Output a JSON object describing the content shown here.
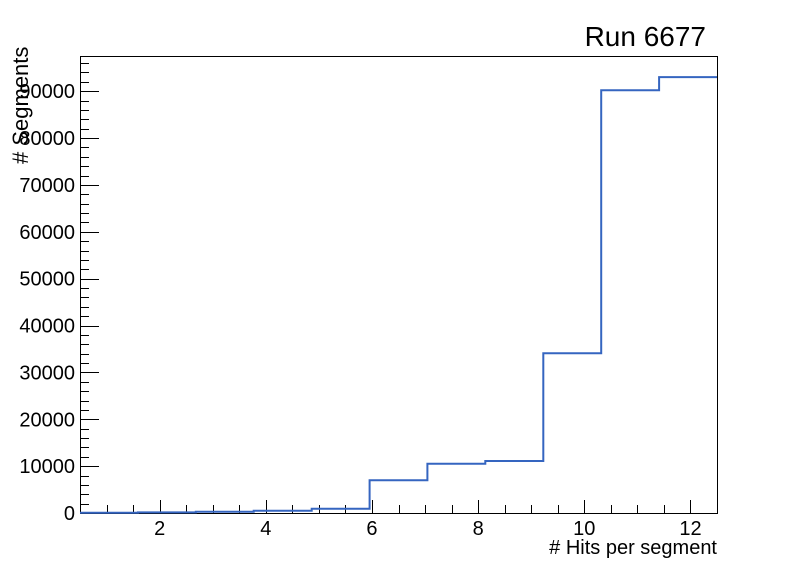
{
  "chart_data": {
    "type": "histogram",
    "title": "Run 6677",
    "xlabel": "# Hits per segment",
    "ylabel": "# Segments",
    "xlim": [
      0.5,
      12.5
    ],
    "ylim": [
      0,
      97500
    ],
    "bin_edges": [
      0.5,
      1.591,
      2.682,
      3.773,
      4.864,
      5.955,
      7.045,
      8.136,
      9.227,
      10.318,
      11.409,
      12.5
    ],
    "bin_counts": [
      60,
      120,
      250,
      500,
      900,
      7000,
      10500,
      11100,
      34100,
      90200,
      93000
    ],
    "x_major_ticks": [
      2,
      4,
      6,
      8,
      10,
      12
    ],
    "x_minor_step": 0.5,
    "y_major_ticks": [
      0,
      10000,
      20000,
      30000,
      40000,
      50000,
      60000,
      70000,
      80000,
      90000
    ],
    "y_minor_step": 2000,
    "grid": false,
    "legend_position": "none",
    "colors": {
      "line": "#3565c0",
      "frame": "#000000",
      "background": "#ffffff"
    }
  }
}
